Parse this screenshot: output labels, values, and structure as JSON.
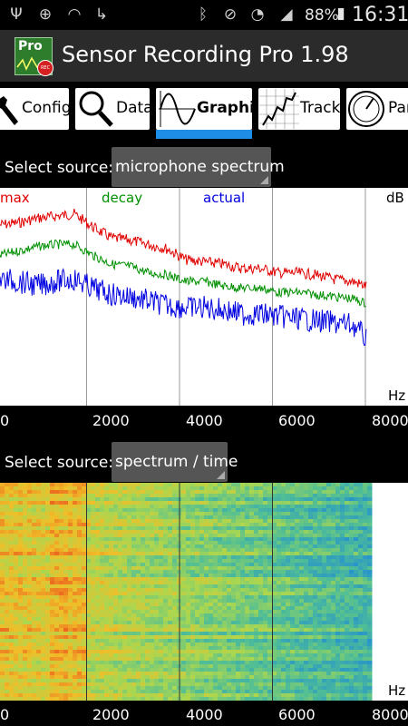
{
  "status_bar": {
    "battery_percent": "88%",
    "time": "16:31",
    "icons": [
      "usb-icon",
      "gps-icon",
      "nfc-icon",
      "call-forward-icon",
      "bluetooth-icon",
      "mute-icon",
      "wifi-icon",
      "signal-icon",
      "battery-charging-icon"
    ]
  },
  "header": {
    "title": "Sensor Recording Pro 1.98",
    "logo_text": "Pro",
    "logo_badge": "REC"
  },
  "tabs": [
    {
      "label": "Config",
      "icon": "wrench-icon"
    },
    {
      "label": "Data",
      "icon": "magnifier-icon"
    },
    {
      "label": "Graphic",
      "icon": "sine-wave-icon",
      "active": true
    },
    {
      "label": "Track",
      "icon": "track-icon"
    },
    {
      "label": "Par",
      "icon": "gauge-icon"
    }
  ],
  "source1": {
    "label": "Select source:",
    "value": "microphone spectrum"
  },
  "source2": {
    "label": "Select source:",
    "value": "spectrum / time"
  },
  "colors": {
    "max": "#e00000",
    "decay": "#009000",
    "actual": "#0000e0",
    "accent": "#1e8de6"
  },
  "chart_data": [
    {
      "type": "line",
      "legend": [
        "max",
        "decay",
        "actual"
      ],
      "ylabel": "dB",
      "xlabel": "Hz",
      "xlim": [
        0,
        8000
      ],
      "x_ticks": [
        "0",
        "2000",
        "4000",
        "6000",
        "8000"
      ],
      "series": [
        {
          "name": "max",
          "x": [
            0,
            400,
            800,
            1200,
            1600,
            2000,
            2400,
            2800,
            3200,
            3600,
            4000,
            4400,
            4800,
            5200,
            5600,
            6000,
            6400,
            6800,
            7200,
            7600,
            8000
          ],
          "values": [
            0.83,
            0.84,
            0.86,
            0.87,
            0.88,
            0.82,
            0.77,
            0.76,
            0.74,
            0.72,
            0.67,
            0.66,
            0.65,
            0.63,
            0.63,
            0.61,
            0.61,
            0.6,
            0.58,
            0.57,
            0.54
          ]
        },
        {
          "name": "decay",
          "x": [
            0,
            400,
            800,
            1200,
            1600,
            2000,
            2400,
            2800,
            3200,
            3600,
            4000,
            4400,
            4800,
            5200,
            5600,
            6000,
            6400,
            6800,
            7200,
            7600,
            8000
          ],
          "values": [
            0.69,
            0.71,
            0.73,
            0.74,
            0.74,
            0.69,
            0.65,
            0.64,
            0.61,
            0.6,
            0.57,
            0.57,
            0.55,
            0.54,
            0.54,
            0.52,
            0.52,
            0.51,
            0.5,
            0.49,
            0.46
          ]
        },
        {
          "name": "actual",
          "x": [
            0,
            400,
            800,
            1200,
            1600,
            2000,
            2400,
            2800,
            3200,
            3600,
            4000,
            4400,
            4800,
            5200,
            5600,
            6000,
            6400,
            6800,
            7200,
            7600,
            8000
          ],
          "values": [
            0.58,
            0.57,
            0.55,
            0.57,
            0.58,
            0.54,
            0.51,
            0.5,
            0.48,
            0.46,
            0.45,
            0.45,
            0.44,
            0.42,
            0.42,
            0.41,
            0.4,
            0.39,
            0.38,
            0.37,
            0.28
          ]
        }
      ]
    },
    {
      "type": "heatmap",
      "xlabel": "Hz",
      "xlim": [
        0,
        8000
      ],
      "x_ticks": [
        "0",
        "2000",
        "4000",
        "6000",
        "8000"
      ]
    }
  ]
}
